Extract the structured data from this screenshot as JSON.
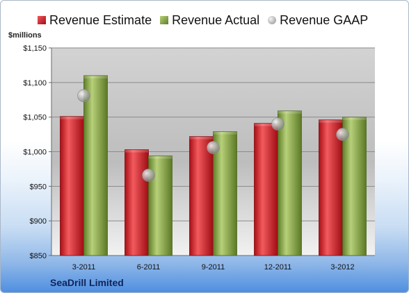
{
  "chart_data": {
    "type": "bar",
    "title": "",
    "xlabel": "",
    "ylabel": "$millions",
    "ylim": [
      850,
      1150
    ],
    "yticks": [
      850,
      900,
      950,
      1000,
      1050,
      1100,
      1150
    ],
    "ytick_labels": [
      "$850",
      "$900",
      "$950",
      "$1,000",
      "$1,050",
      "$1,100",
      "$1,150"
    ],
    "categories": [
      "3-2011",
      "6-2011",
      "9-2011",
      "12-2011",
      "3-2012"
    ],
    "series": [
      {
        "name": "Revenue Estimate",
        "kind": "bar",
        "color": "#c0141c",
        "values": [
          1051,
          1003,
          1022,
          1041,
          1046
        ]
      },
      {
        "name": "Revenue Actual",
        "kind": "bar",
        "color": "#7a9a3a",
        "values": [
          1110,
          994,
          1029,
          1059,
          1050
        ]
      },
      {
        "name": "Revenue GAAP",
        "kind": "marker",
        "color": "#9a9a9a",
        "values": [
          1081,
          966,
          1006,
          1040,
          1025
        ]
      }
    ],
    "grid": true,
    "legend_position": "top"
  },
  "footer": {
    "company": "SeaDrill Limited"
  }
}
